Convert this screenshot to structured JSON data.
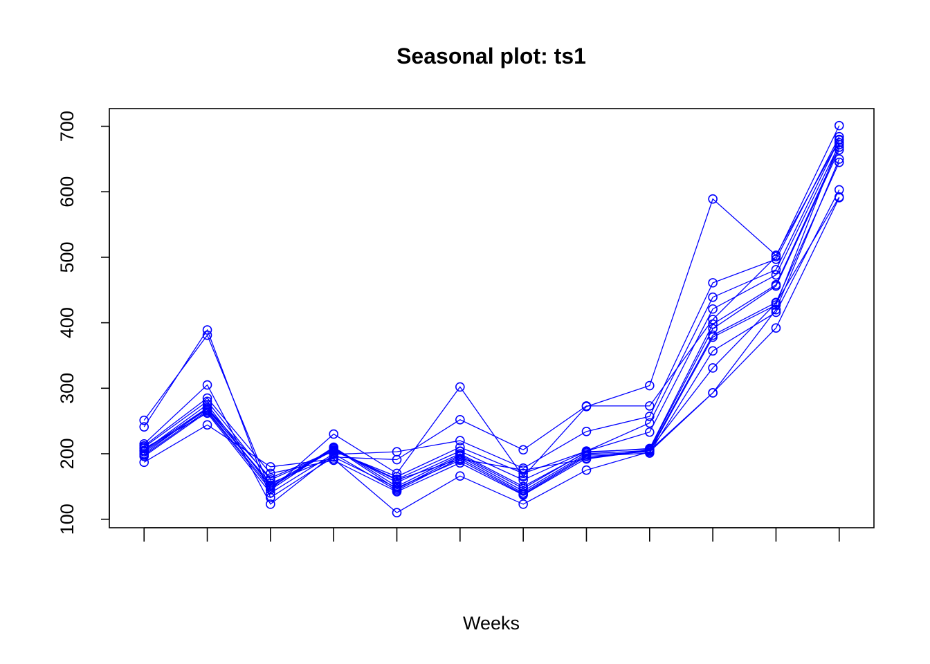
{
  "chart_data": {
    "type": "line",
    "title": "Seasonal plot: ts1",
    "xlabel": "Weeks",
    "ylabel": "",
    "x": [
      1,
      2,
      3,
      4,
      5,
      6,
      7,
      8,
      9,
      10,
      11,
      12
    ],
    "xlim": [
      0.45,
      12.55
    ],
    "ylim": [
      87,
      727
    ],
    "yticks": [
      100,
      200,
      300,
      400,
      500,
      600,
      700
    ],
    "x_tick_labels_shown": false,
    "grid": false,
    "legend": "none",
    "color": "#0000ff",
    "marker": "open-circle",
    "series": [
      {
        "values": [
          187,
          244,
          180,
          192,
          110,
          166,
          123,
          175,
          203,
          293,
          392,
          591
        ]
      },
      {
        "values": [
          251,
          381,
          145,
          230,
          170,
          302,
          165,
          272,
          304,
          589,
          503,
          679
        ]
      },
      {
        "values": [
          241,
          389,
          133,
          195,
          191,
          252,
          206,
          273,
          273,
          405,
          501,
          701
        ]
      },
      {
        "values": [
          215,
          305,
          123,
          199,
          203,
          220,
          178,
          234,
          257,
          461,
          497,
          684
        ]
      },
      {
        "values": [
          210,
          280,
          160,
          204,
          165,
          210,
          170,
          204,
          247,
          439,
          481,
          680
        ]
      },
      {
        "values": [
          205,
          275,
          150,
          206,
          161,
          204,
          160,
          204,
          233,
          421,
          473,
          672
        ]
      },
      {
        "values": [
          200,
          270,
          152,
          208,
          156,
          200,
          150,
          202,
          208,
          398,
          458,
          668
        ]
      },
      {
        "values": [
          198,
          266,
          148,
          210,
          150,
          198,
          147,
          203,
          207,
          391,
          456,
          664
        ]
      },
      {
        "values": [
          196,
          264,
          145,
          209,
          146,
          196,
          143,
          200,
          205,
          381,
          431,
          645
        ]
      },
      {
        "values": [
          208,
          262,
          140,
          200,
          144,
          193,
          140,
          198,
          203,
          378,
          427,
          675
        ]
      },
      {
        "values": [
          203,
          268,
          155,
          195,
          148,
          190,
          138,
          196,
          201,
          357,
          416,
          603
        ]
      },
      {
        "values": [
          212,
          285,
          170,
          190,
          142,
          186,
          137,
          193,
          206,
          331,
          430,
          592
        ]
      },
      {
        "values": [
          205,
          270,
          163,
          205,
          160,
          192,
          175,
          192,
          205,
          293,
          420,
          650
        ]
      }
    ]
  }
}
